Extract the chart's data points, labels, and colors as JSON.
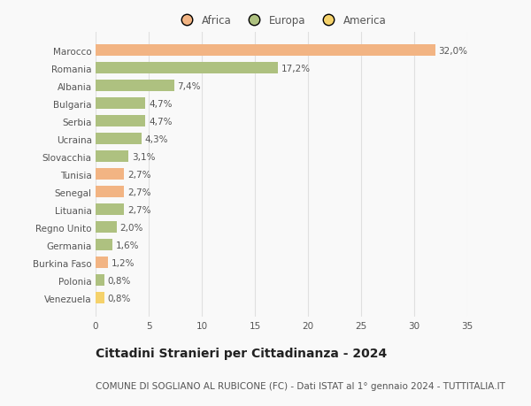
{
  "categories": [
    "Marocco",
    "Romania",
    "Albania",
    "Bulgaria",
    "Serbia",
    "Ucraina",
    "Slovacchia",
    "Tunisia",
    "Senegal",
    "Lituania",
    "Regno Unito",
    "Germania",
    "Burkina Faso",
    "Polonia",
    "Venezuela"
  ],
  "values": [
    32.0,
    17.2,
    7.4,
    4.7,
    4.7,
    4.3,
    3.1,
    2.7,
    2.7,
    2.7,
    2.0,
    1.6,
    1.2,
    0.8,
    0.8
  ],
  "labels": [
    "32,0%",
    "17,2%",
    "7,4%",
    "4,7%",
    "4,7%",
    "4,3%",
    "3,1%",
    "2,7%",
    "2,7%",
    "2,7%",
    "2,0%",
    "1,6%",
    "1,2%",
    "0,8%",
    "0,8%"
  ],
  "colors": [
    "#f2b483",
    "#aec180",
    "#aec180",
    "#aec180",
    "#aec180",
    "#aec180",
    "#aec180",
    "#f2b483",
    "#f2b483",
    "#aec180",
    "#aec180",
    "#aec180",
    "#f2b483",
    "#aec180",
    "#f5d26b"
  ],
  "legend_labels": [
    "Africa",
    "Europa",
    "America"
  ],
  "legend_colors": [
    "#f2b483",
    "#aec180",
    "#f5d26b"
  ],
  "title": "Cittadini Stranieri per Cittadinanza - 2024",
  "subtitle": "COMUNE DI SOGLIANO AL RUBICONE (FC) - Dati ISTAT al 1° gennaio 2024 - TUTTITALIA.IT",
  "xlim": [
    0,
    35
  ],
  "xticks": [
    0,
    5,
    10,
    15,
    20,
    25,
    30,
    35
  ],
  "bg_color": "#f9f9f9",
  "grid_color": "#e0e0e0",
  "label_fontsize": 7.5,
  "bar_label_fontsize": 7.5,
  "title_fontsize": 10,
  "subtitle_fontsize": 7.5,
  "bar_height": 0.65
}
